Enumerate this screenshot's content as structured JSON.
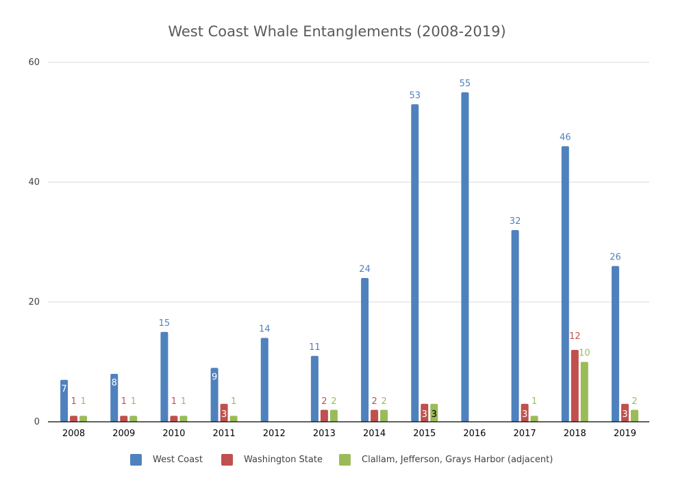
{
  "chart_data": {
    "type": "bar",
    "title": "West Coast Whale Entanglements (2008-2019)",
    "xlabel": "",
    "ylabel": "",
    "ylim": [
      0,
      60
    ],
    "yticks": [
      0,
      20,
      40,
      60
    ],
    "grid": true,
    "legend_position": "bottom",
    "categories": [
      "2008",
      "2009",
      "2010",
      "2011",
      "2012",
      "2013",
      "2014",
      "2015",
      "2016",
      "2017",
      "2018",
      "2019"
    ],
    "series": [
      {
        "name": "West Coast",
        "color": "#4f81bd",
        "values": [
          7,
          8,
          15,
          9,
          14,
          11,
          24,
          53,
          55,
          32,
          46,
          26
        ]
      },
      {
        "name": "Washington State",
        "color": "#c0504d",
        "values": [
          1,
          1,
          1,
          3,
          null,
          2,
          2,
          3,
          null,
          3,
          12,
          3
        ]
      },
      {
        "name": "Clallam, Jefferson, Grays Harbor (adjacent)",
        "color": "#9bbb59",
        "values": [
          1,
          1,
          1,
          1,
          null,
          2,
          2,
          3,
          null,
          1,
          10,
          2
        ]
      }
    ]
  }
}
